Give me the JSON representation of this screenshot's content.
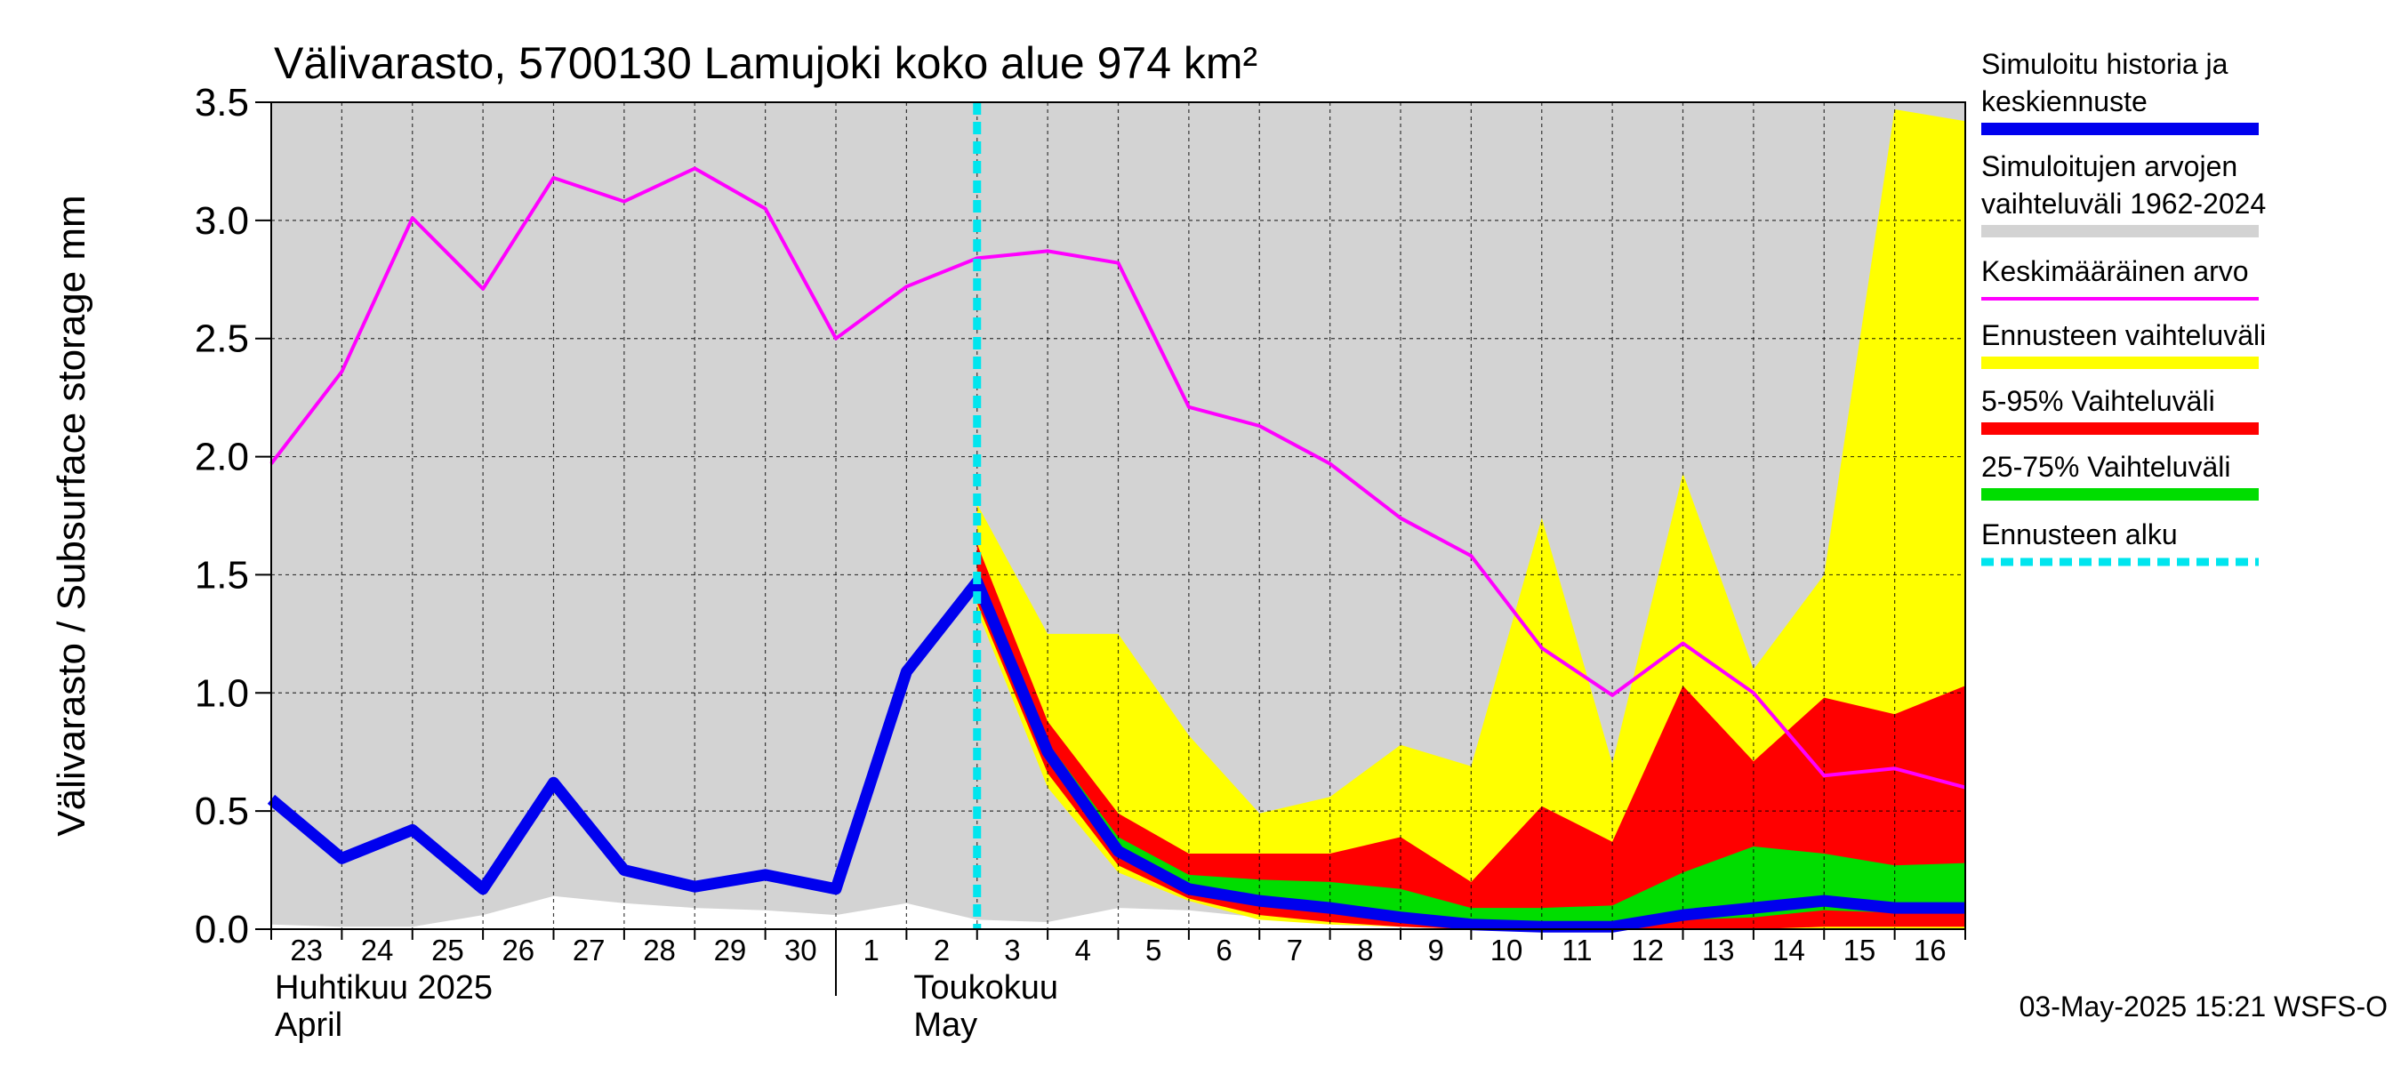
{
  "chart_data": {
    "type": "area",
    "title": "Välivarasto, 5700130 Lamujoki koko alue 974 km²",
    "ylabel": "Välivarasto / Subsurface storage  mm",
    "ylim": [
      0,
      3.5
    ],
    "yticks": [
      "0.0",
      "0.5",
      "1.0",
      "1.5",
      "2.0",
      "2.5",
      "3.0",
      "3.5"
    ],
    "x": [
      "2025-04-23",
      "2025-04-24",
      "2025-04-25",
      "2025-04-26",
      "2025-04-27",
      "2025-04-28",
      "2025-04-29",
      "2025-04-30",
      "2025-05-01",
      "2025-05-02",
      "2025-05-03",
      "2025-05-04",
      "2025-05-05",
      "2025-05-06",
      "2025-05-07",
      "2025-05-08",
      "2025-05-09",
      "2025-05-10",
      "2025-05-11",
      "2025-05-12",
      "2025-05-13",
      "2025-05-14",
      "2025-05-15",
      "2025-05-16",
      "2025-05-17"
    ],
    "xtick_labels": [
      "23",
      "24",
      "25",
      "26",
      "27",
      "28",
      "29",
      "30",
      "1",
      "2",
      "3",
      "4",
      "5",
      "6",
      "7",
      "8",
      "9",
      "10",
      "11",
      "12",
      "13",
      "14",
      "15",
      "16"
    ],
    "month_labels": [
      {
        "line1": "Huhtikuu  2025",
        "line2": "April"
      },
      {
        "line1": "Toukokuu",
        "line2": "May"
      }
    ],
    "grid": true,
    "legend_position": "right",
    "forecast_start": "2025-05-03",
    "series": [
      {
        "name": "Simuloitujen arvojen vaihteluväli 1962-2024",
        "kind": "band",
        "color": "#d3d3d3",
        "lower": [
          0.02,
          0.01,
          0.01,
          0.06,
          0.14,
          0.11,
          0.09,
          0.08,
          0.06,
          0.11,
          0.04,
          0.03,
          0.09,
          0.08,
          0.05,
          0.02,
          0.01,
          0.0,
          0.0,
          0.0,
          0.0,
          0.0,
          0.0,
          0.0,
          0.0
        ],
        "upper": [
          3.5,
          3.5,
          3.5,
          3.5,
          3.5,
          3.5,
          3.5,
          3.5,
          3.5,
          3.5,
          3.5,
          3.5,
          3.5,
          3.5,
          3.5,
          3.5,
          3.5,
          3.5,
          3.5,
          3.5,
          3.5,
          3.5,
          3.5,
          3.5,
          3.5
        ]
      },
      {
        "name": "Ennusteen vaihteluväli",
        "kind": "band",
        "color": "#ffff00",
        "lower": [
          null,
          null,
          null,
          null,
          null,
          null,
          null,
          null,
          null,
          null,
          1.35,
          0.6,
          0.24,
          0.12,
          0.04,
          0.02,
          0.01,
          0.0,
          0.0,
          0.0,
          0.0,
          0.0,
          0.0,
          0.0,
          0.0
        ],
        "upper": [
          null,
          null,
          null,
          null,
          null,
          null,
          null,
          null,
          null,
          null,
          1.8,
          1.25,
          1.25,
          0.82,
          0.49,
          0.56,
          0.78,
          0.69,
          1.74,
          0.7,
          1.93,
          1.1,
          1.5,
          3.47,
          3.42
        ]
      },
      {
        "name": "5-95% Vaihteluväli",
        "kind": "band",
        "color": "#ff0000",
        "lower": [
          null,
          null,
          null,
          null,
          null,
          null,
          null,
          null,
          null,
          null,
          1.38,
          0.66,
          0.27,
          0.13,
          0.06,
          0.03,
          0.01,
          0.0,
          0.0,
          0.0,
          0.0,
          0.0,
          0.01,
          0.01,
          0.01
        ],
        "upper": [
          null,
          null,
          null,
          null,
          null,
          null,
          null,
          null,
          null,
          null,
          1.63,
          0.88,
          0.49,
          0.32,
          0.32,
          0.32,
          0.39,
          0.2,
          0.52,
          0.37,
          1.03,
          0.71,
          0.98,
          0.91,
          1.03
        ]
      },
      {
        "name": "25-75% Vaihteluväli",
        "kind": "band",
        "color": "#00dd00",
        "lower": [
          null,
          null,
          null,
          null,
          null,
          null,
          null,
          null,
          null,
          null,
          1.43,
          0.73,
          0.32,
          0.16,
          0.11,
          0.08,
          0.04,
          0.02,
          0.02,
          0.02,
          0.04,
          0.05,
          0.08,
          0.07,
          0.07
        ],
        "upper": [
          null,
          null,
          null,
          null,
          null,
          null,
          null,
          null,
          null,
          null,
          1.52,
          0.79,
          0.39,
          0.23,
          0.21,
          0.2,
          0.17,
          0.09,
          0.09,
          0.1,
          0.24,
          0.35,
          0.32,
          0.27,
          0.28
        ]
      },
      {
        "name": "Keskimääräinen arvo",
        "kind": "line",
        "color": "#ff00ff",
        "values": [
          1.97,
          2.36,
          3.01,
          2.71,
          3.18,
          3.08,
          3.22,
          3.05,
          2.5,
          2.72,
          2.84,
          2.87,
          2.82,
          2.21,
          2.13,
          1.97,
          1.74,
          1.58,
          1.19,
          0.99,
          1.21,
          1.0,
          0.65,
          0.68,
          0.6
        ]
      },
      {
        "name": "Simuloitu historia ja keskiennuste",
        "kind": "line",
        "color": "#0000ee",
        "values": [
          0.55,
          0.3,
          0.42,
          0.17,
          0.62,
          0.25,
          0.18,
          0.23,
          0.17,
          1.09,
          1.47,
          0.75,
          0.33,
          0.17,
          0.12,
          0.09,
          0.05,
          0.02,
          0.01,
          0.01,
          0.06,
          0.09,
          0.12,
          0.09,
          0.09
        ]
      }
    ],
    "legend": [
      {
        "label": "Simuloitu historia ja keskiennuste",
        "color": "#0000ee",
        "style": "thick"
      },
      {
        "label": "Simuloitujen arvojen vaihteluväli 1962-2024",
        "color": "#d3d3d3",
        "style": "thick"
      },
      {
        "label": "Keskimääräinen arvo",
        "color": "#ff00ff",
        "style": "thin"
      },
      {
        "label": "Ennusteen vaihteluväli",
        "color": "#ffff00",
        "style": "thick"
      },
      {
        "label": "5-95% Vaihteluväli",
        "color": "#ff0000",
        "style": "thick"
      },
      {
        "label": "25-75% Vaihteluväli",
        "color": "#00dd00",
        "style": "thick"
      },
      {
        "label": "Ennusteen alku",
        "color": "#00e5ee",
        "style": "dashed"
      }
    ]
  },
  "footer": {
    "timestamp": "03-May-2025 15:21 WSFS-O"
  }
}
